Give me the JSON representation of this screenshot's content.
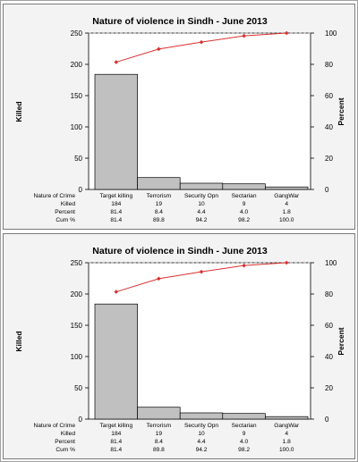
{
  "chart_data": [
    {
      "type": "bar",
      "title": "Nature of violence in Sindh - June 2013",
      "ylabel": "Killed",
      "y2label": "Percent",
      "ylim": [
        0,
        250
      ],
      "y2lim": [
        0,
        100
      ],
      "yticks": [
        "0",
        "50",
        "100",
        "150",
        "200",
        "250"
      ],
      "y2ticks": [
        "0",
        "20",
        "40",
        "60",
        "80",
        "100"
      ],
      "grid": false,
      "categories": [
        "Target killing",
        "Terrorism",
        "Security Opn",
        "Sectarian",
        "GangWar"
      ],
      "values": [
        184,
        19,
        10,
        9,
        4
      ],
      "cumulative_percent": [
        81.4,
        89.8,
        94.2,
        98.2,
        100.0
      ],
      "table": {
        "row_labels": [
          "Nature of Crime",
          "Killed",
          "Percent",
          "Cum %"
        ],
        "killed": [
          "184",
          "19",
          "10",
          "9",
          "4"
        ],
        "percent": [
          "81.4",
          "8.4",
          "4.4",
          "4.0",
          "1.8"
        ],
        "cum": [
          "81.4",
          "89.8",
          "94.2",
          "98.2",
          "100.0"
        ]
      },
      "colors": {
        "bar_fill": "#c0c0c0",
        "bar_stroke": "#000000",
        "line": "#d93030",
        "plot_bg": "#ffffff",
        "panel_bg": "#f3f3f3"
      }
    },
    {
      "type": "bar",
      "title": "Nature of violence in Sindh - June 2013",
      "ylabel": "Killed",
      "y2label": "Percent",
      "ylim": [
        0,
        250
      ],
      "y2lim": [
        0,
        100
      ],
      "yticks": [
        "0",
        "50",
        "100",
        "150",
        "200",
        "250"
      ],
      "y2ticks": [
        "0",
        "20",
        "40",
        "60",
        "80",
        "100"
      ],
      "grid": false,
      "categories": [
        "Target killing",
        "Terrorism",
        "Security Opn",
        "Sectarian",
        "GangWar"
      ],
      "values": [
        184,
        19,
        10,
        9,
        4
      ],
      "cumulative_percent": [
        81.4,
        89.8,
        94.2,
        98.2,
        100.0
      ],
      "table": {
        "row_labels": [
          "Nature of Crime",
          "Killed",
          "Percent",
          "Cum %"
        ],
        "killed": [
          "184",
          "19",
          "10",
          "9",
          "4"
        ],
        "percent": [
          "81.4",
          "8.4",
          "4.4",
          "4.0",
          "1.8"
        ],
        "cum": [
          "81.4",
          "89.8",
          "94.2",
          "98.2",
          "100.0"
        ]
      },
      "colors": {
        "bar_fill": "#c0c0c0",
        "bar_stroke": "#000000",
        "line": "#d93030",
        "plot_bg": "#ffffff",
        "panel_bg": "#f3f3f3"
      }
    }
  ]
}
